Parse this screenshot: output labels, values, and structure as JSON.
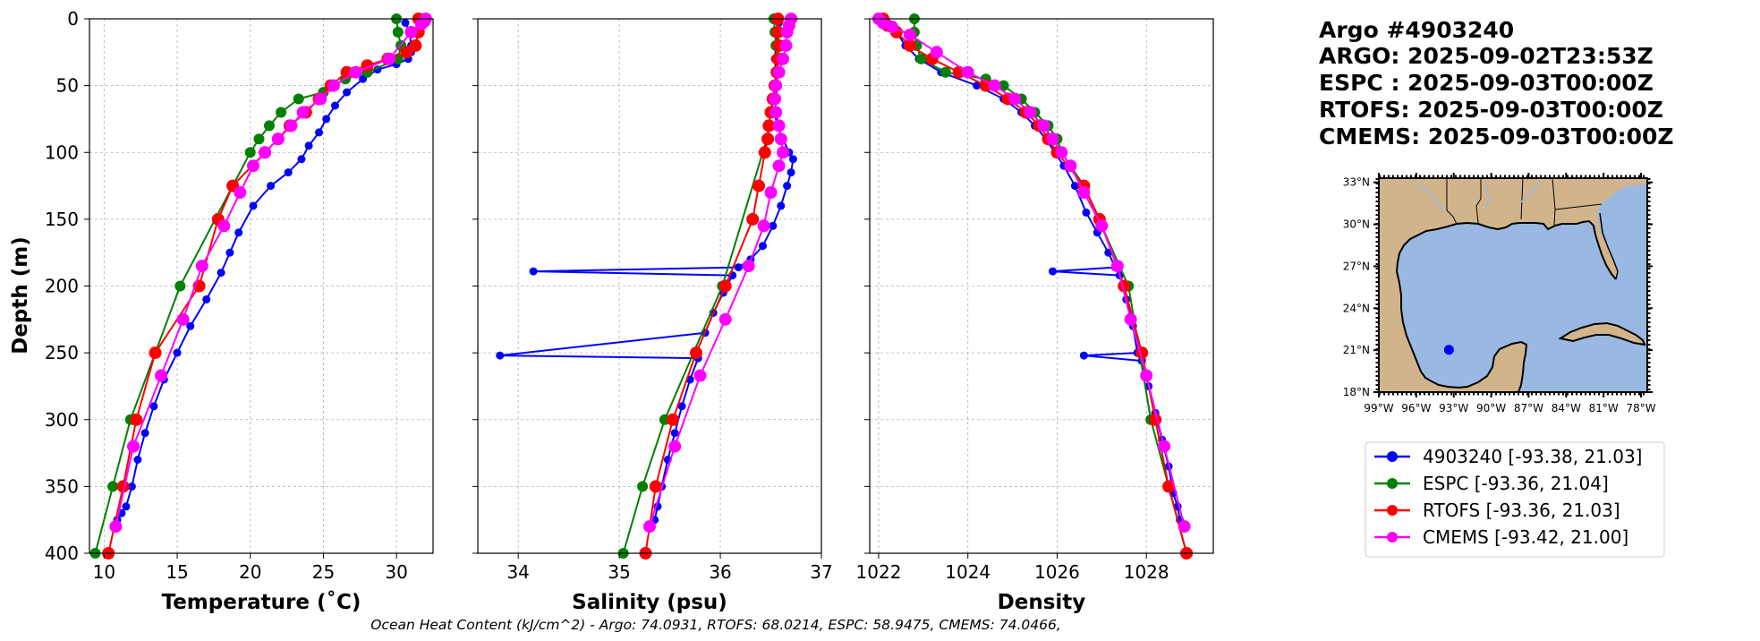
{
  "header": {
    "lines": [
      "Argo #4903240",
      "ARGO: 2025-09-02T23:53Z",
      "ESPC : 2025-09-03T00:00Z",
      "RTOFS: 2025-09-03T00:00Z",
      "CMEMS: 2025-09-03T00:00Z"
    ]
  },
  "footnote": "Ocean Heat Content (kJ/cm^2) - Argo: 74.0931,  RTOFS: 68.0214,  ESPC: 58.9475,  CMEMS: 74.0466,",
  "legend": {
    "entries": [
      {
        "label": "4903240 [-93.38, 21.03]",
        "color": "#0000ff"
      },
      {
        "label": "ESPC [-93.36, 21.04]",
        "color": "#008000"
      },
      {
        "label": "RTOFS [-93.36, 21.03]",
        "color": "#ff0000"
      },
      {
        "label": "CMEMS [-93.42, 21.00]",
        "color": "#ff00ff"
      }
    ]
  },
  "map": {
    "lat_ticks": [
      "33°N",
      "30°N",
      "27°N",
      "24°N",
      "21°N",
      "18°N"
    ],
    "lon_ticks": [
      "99°W",
      "96°W",
      "93°W",
      "90°W",
      "87°W",
      "84°W",
      "81°W",
      "78°W"
    ],
    "land_color": "#d2b48c",
    "water_color": "#99b8e2",
    "float_marker_color": "#0000ff"
  },
  "chart_data": [
    {
      "type": "line",
      "title": "",
      "xlabel": "Temperature (˚C)",
      "ylabel": "Depth (m)",
      "xlim": [
        9,
        32.5
      ],
      "ylim": [
        400,
        0
      ],
      "xticks": [
        10,
        15,
        20,
        25,
        30
      ],
      "yticks": [
        0,
        50,
        100,
        150,
        200,
        250,
        300,
        350,
        400
      ],
      "grid": true,
      "series": [
        {
          "name": "4903240",
          "color": "#0000ff",
          "markersize": 4.5,
          "x": [
            30.6,
            30.9,
            31.0,
            31.0,
            30.8,
            30.0,
            28.7,
            27.7,
            26.6,
            25.8,
            25.2,
            24.7,
            24.0,
            23.5,
            22.6,
            21.4,
            20.2,
            19.2,
            18.6,
            18.0,
            17.0,
            15.9,
            15.0,
            14.1,
            13.4,
            12.8,
            12.3,
            11.9,
            11.5,
            11.2,
            10.9
          ],
          "y": [
            3,
            10,
            20,
            25,
            30,
            34,
            38,
            45,
            55,
            65,
            75,
            85,
            95,
            105,
            115,
            125,
            140,
            160,
            175,
            190,
            210,
            230,
            250,
            270,
            290,
            310,
            330,
            350,
            365,
            370,
            375
          ]
        },
        {
          "name": "ESPC",
          "color": "#008000",
          "markersize": 6,
          "x": [
            30.0,
            30.1,
            30.3,
            30.1,
            28.0,
            26.5,
            25.7,
            25.0,
            23.3,
            22.1,
            21.3,
            20.6,
            20.0,
            18.8,
            15.2,
            11.8,
            10.6,
            9.4
          ],
          "y": [
            0,
            10,
            20,
            30,
            40,
            45,
            50,
            55,
            60,
            70,
            80,
            90,
            100,
            125,
            200,
            300,
            350,
            400
          ]
        },
        {
          "name": "RTOFS",
          "color": "#ff0000",
          "markersize": 7,
          "x": [
            31.5,
            31.5,
            31.3,
            30.7,
            29.4,
            28.0,
            26.6,
            25.5,
            24.7,
            23.8,
            22.7,
            21.9,
            21.0,
            18.8,
            17.8,
            16.5,
            13.5,
            12.2,
            11.3,
            10.3
          ],
          "y": [
            0,
            10,
            20,
            25,
            30,
            35,
            40,
            50,
            60,
            70,
            80,
            90,
            100,
            125,
            150,
            200,
            250,
            300,
            350,
            400
          ]
        },
        {
          "name": "CMEMS",
          "color": "#ff00ff",
          "markersize": 7,
          "x": [
            32.0,
            31.9,
            31.7,
            31.0,
            29.5,
            27.2,
            25.7,
            24.8,
            23.6,
            22.8,
            21.9,
            21.0,
            20.2,
            19.3,
            18.2,
            16.7,
            15.4,
            13.9,
            12.0,
            10.8
          ],
          "y": [
            0,
            2,
            4,
            10,
            30,
            40,
            50,
            60,
            70,
            80,
            90,
            100,
            110,
            130,
            155,
            185,
            225,
            267,
            320,
            380
          ]
        }
      ]
    },
    {
      "type": "line",
      "title": "",
      "xlabel": "Salinity (psu)",
      "ylabel": "",
      "xlim": [
        33.6,
        37
      ],
      "ylim": [
        400,
        0
      ],
      "xticks": [
        34,
        35,
        36,
        37
      ],
      "yticks": [
        0,
        50,
        100,
        150,
        200,
        250,
        300,
        350,
        400
      ],
      "grid": true,
      "series": [
        {
          "name": "4903240",
          "color": "#0000ff",
          "markersize": 4.5,
          "x": [
            36.58,
            36.56,
            36.55,
            36.54,
            36.55,
            36.56,
            36.55,
            36.54,
            36.56,
            36.62,
            36.68,
            36.72,
            36.7,
            36.66,
            36.6,
            36.52,
            36.42,
            36.3,
            36.18,
            34.15,
            36.12,
            36.03,
            35.93,
            35.85,
            33.82,
            35.78,
            35.7,
            35.62,
            35.55,
            35.48,
            35.42,
            35.38,
            35.35
          ],
          "y": [
            3,
            10,
            20,
            30,
            40,
            50,
            60,
            70,
            80,
            90,
            100,
            105,
            115,
            125,
            140,
            155,
            170,
            180,
            186,
            189,
            192,
            205,
            220,
            235,
            252,
            254,
            270,
            290,
            310,
            330,
            350,
            365,
            375
          ]
        },
        {
          "name": "ESPC",
          "color": "#008000",
          "markersize": 6,
          "x": [
            36.53,
            36.54,
            36.55,
            36.56,
            36.55,
            36.54,
            36.53,
            36.5,
            36.48,
            36.46,
            36.02,
            35.45,
            35.23,
            35.04
          ],
          "y": [
            0,
            10,
            20,
            30,
            40,
            50,
            60,
            70,
            80,
            90,
            200,
            300,
            350,
            400
          ]
        },
        {
          "name": "RTOFS",
          "color": "#ff0000",
          "markersize": 7,
          "x": [
            36.57,
            36.57,
            36.58,
            36.57,
            36.56,
            36.54,
            36.52,
            36.5,
            36.48,
            36.47,
            36.44,
            36.38,
            36.32,
            36.05,
            35.76,
            35.53,
            35.36,
            35.26
          ],
          "y": [
            0,
            10,
            20,
            30,
            40,
            50,
            60,
            70,
            80,
            90,
            100,
            125,
            150,
            200,
            250,
            300,
            350,
            400
          ]
        },
        {
          "name": "CMEMS",
          "color": "#ff00ff",
          "markersize": 7,
          "x": [
            36.7,
            36.68,
            36.66,
            36.65,
            36.62,
            36.58,
            36.55,
            36.54,
            36.55,
            36.58,
            36.6,
            36.62,
            36.58,
            36.5,
            36.43,
            36.28,
            36.05,
            35.8,
            35.55,
            35.3
          ],
          "y": [
            0,
            5,
            10,
            20,
            30,
            40,
            50,
            60,
            70,
            80,
            90,
            100,
            110,
            130,
            155,
            185,
            225,
            267,
            320,
            380
          ]
        }
      ]
    },
    {
      "type": "line",
      "title": "",
      "xlabel": "Density",
      "ylabel": "",
      "xlim": [
        1021.8,
        1029.5
      ],
      "ylim": [
        400,
        0
      ],
      "xticks": [
        1022,
        1024,
        1026,
        1028
      ],
      "yticks": [
        0,
        50,
        100,
        150,
        200,
        250,
        300,
        350,
        400
      ],
      "grid": true,
      "series": [
        {
          "name": "4903240",
          "color": "#0000ff",
          "markersize": 4.5,
          "x": [
            1022.2,
            1022.4,
            1022.6,
            1022.9,
            1023.4,
            1024.2,
            1024.8,
            1025.2,
            1025.5,
            1025.75,
            1025.95,
            1026.15,
            1026.4,
            1026.65,
            1026.9,
            1027.15,
            1027.3,
            1025.9,
            1027.4,
            1027.55,
            1027.7,
            1027.8,
            1026.6,
            1027.9,
            1028.05,
            1028.2,
            1028.35,
            1028.5,
            1028.6,
            1028.7,
            1028.75
          ],
          "y": [
            3,
            10,
            20,
            30,
            40,
            50,
            60,
            70,
            80,
            90,
            100,
            110,
            125,
            145,
            160,
            175,
            186,
            189,
            192,
            210,
            230,
            250,
            252,
            256,
            275,
            295,
            315,
            335,
            355,
            365,
            375
          ]
        },
        {
          "name": "ESPC",
          "color": "#008000",
          "markersize": 6,
          "x": [
            1022.8,
            1022.8,
            1022.85,
            1022.95,
            1023.5,
            1024.4,
            1024.8,
            1025.2,
            1025.5,
            1025.8,
            1026.0,
            1026.1,
            1026.6,
            1027.6,
            1028.1,
            1028.5,
            1028.9
          ],
          "y": [
            0,
            10,
            20,
            30,
            40,
            45,
            50,
            60,
            70,
            80,
            90,
            100,
            125,
            200,
            300,
            350,
            400
          ]
        },
        {
          "name": "RTOFS",
          "color": "#ff0000",
          "markersize": 7,
          "x": [
            1022.1,
            1022.2,
            1022.4,
            1022.7,
            1023.2,
            1023.8,
            1024.4,
            1024.9,
            1025.3,
            1025.6,
            1025.8,
            1026.0,
            1026.6,
            1026.95,
            1027.5,
            1027.9,
            1028.2,
            1028.5,
            1028.9
          ],
          "y": [
            0,
            5,
            10,
            20,
            30,
            40,
            50,
            60,
            70,
            80,
            90,
            100,
            125,
            150,
            200,
            250,
            300,
            350,
            400
          ]
        },
        {
          "name": "CMEMS",
          "color": "#ff00ff",
          "markersize": 7,
          "x": [
            1022.0,
            1022.1,
            1022.3,
            1022.7,
            1023.3,
            1024.0,
            1024.6,
            1025.05,
            1025.4,
            1025.7,
            1025.9,
            1026.1,
            1026.3,
            1026.6,
            1027.0,
            1027.35,
            1027.65,
            1028.0,
            1028.4,
            1028.85
          ],
          "y": [
            0,
            3,
            6,
            12,
            25,
            40,
            50,
            60,
            70,
            80,
            90,
            100,
            110,
            130,
            155,
            185,
            225,
            267,
            320,
            380
          ]
        }
      ]
    }
  ]
}
